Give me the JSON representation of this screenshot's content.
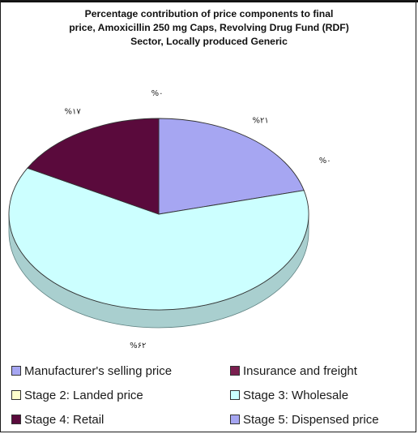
{
  "chart_data": {
    "type": "pie",
    "title_lines": [
      "Percentage contribution of price components to final",
      "price, Amoxicillin 250 mg Caps, Revolving Drug Fund (RDF)",
      "Sector, Locally produced Generic"
    ],
    "slices": [
      {
        "name": "Manufacturer's selling price",
        "value": 21,
        "label": "%۲۱",
        "color": "#a6a6f2"
      },
      {
        "name": "Insurance and freight",
        "value": 0,
        "label": "%۰",
        "color": "#7a1f4f"
      },
      {
        "name": "Stage 2: Landed price",
        "value": 0,
        "label": "%۰",
        "color": "#ffffcc"
      },
      {
        "name": "Stage 3: Wholesale",
        "value": 62,
        "label": "%۶۲",
        "color": "#ccffff"
      },
      {
        "name": "Stage 4: Retail",
        "value": 17,
        "label": "%۱۷",
        "color": "#5a0a3c"
      },
      {
        "name": "Stage 5: Dispensed price",
        "value": 0,
        "label": "",
        "color": "#a6a6f2"
      }
    ],
    "legend_placement": "bottom"
  }
}
